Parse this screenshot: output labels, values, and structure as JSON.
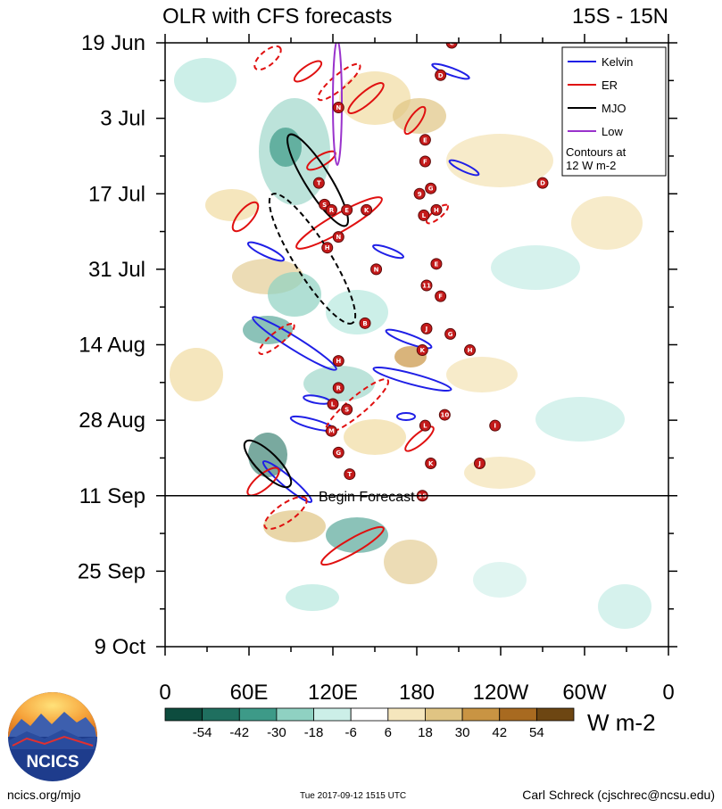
{
  "chart_data": {
    "type": "heatmap",
    "title": "OLR with CFS forecasts",
    "region_label": "15S - 15N",
    "y_ticks": [
      "19 Jun",
      "3 Jul",
      "17 Jul",
      "31 Jul",
      "14 Aug",
      "28 Aug",
      "11 Sep",
      "25 Sep",
      "9 Oct"
    ],
    "x_ticks": [
      "0",
      "60E",
      "120E",
      "180",
      "120W",
      "60W",
      "0"
    ],
    "x_range_deg": [
      0,
      360
    ],
    "y_range_days": [
      0,
      112
    ],
    "forecast_start_day": 84,
    "forecast_label": "Begin Forecast",
    "colorbar": {
      "labels": [
        "-54",
        "-42",
        "-30",
        "-18",
        "-6",
        "6",
        "18",
        "30",
        "42",
        "54"
      ],
      "colors": [
        "#0d4c3e",
        "#1f6f5f",
        "#3d9a88",
        "#8fd1c2",
        "#ccefe8",
        "#ffffff",
        "#f5e6bd",
        "#e0c483",
        "#c99443",
        "#a86a20",
        "#6d4612"
      ],
      "units": "W m-2"
    },
    "legend": {
      "entries": [
        {
          "name": "Kelvin",
          "color": "#1f1fe6"
        },
        {
          "name": "ER",
          "color": "#e01010"
        },
        {
          "name": "MJO",
          "color": "#000000"
        },
        {
          "name": "Low",
          "color": "#9932cc"
        }
      ],
      "note_lines": [
        "Contours at",
        "12 W m-2"
      ],
      "placement": "top-right"
    },
    "storms": [
      {
        "lon": 205,
        "day": 0,
        "label": "C"
      },
      {
        "lon": 197,
        "day": 6,
        "label": "D"
      },
      {
        "lon": 124,
        "day": 12,
        "label": "N"
      },
      {
        "lon": 186,
        "day": 18,
        "label": "E"
      },
      {
        "lon": 186,
        "day": 22,
        "label": "F"
      },
      {
        "lon": 270,
        "day": 26,
        "label": "D"
      },
      {
        "lon": 110,
        "day": 26,
        "label": "T"
      },
      {
        "lon": 190,
        "day": 27,
        "label": "G"
      },
      {
        "lon": 182,
        "day": 28,
        "label": "9"
      },
      {
        "lon": 114,
        "day": 30,
        "label": "S"
      },
      {
        "lon": 119,
        "day": 31,
        "label": "R"
      },
      {
        "lon": 130,
        "day": 31,
        "label": "E"
      },
      {
        "lon": 144,
        "day": 31,
        "label": "K"
      },
      {
        "lon": 194,
        "day": 31,
        "label": "H"
      },
      {
        "lon": 185,
        "day": 32,
        "label": "L"
      },
      {
        "lon": 124,
        "day": 36,
        "label": "N"
      },
      {
        "lon": 116,
        "day": 38,
        "label": "H"
      },
      {
        "lon": 194,
        "day": 41,
        "label": "E"
      },
      {
        "lon": 151,
        "day": 42,
        "label": "N"
      },
      {
        "lon": 187,
        "day": 45,
        "label": "11"
      },
      {
        "lon": 197,
        "day": 47,
        "label": "F"
      },
      {
        "lon": 143,
        "day": 52,
        "label": "B"
      },
      {
        "lon": 187,
        "day": 53,
        "label": "J"
      },
      {
        "lon": 204,
        "day": 54,
        "label": "G"
      },
      {
        "lon": 184,
        "day": 57,
        "label": "K"
      },
      {
        "lon": 218,
        "day": 57,
        "label": "H"
      },
      {
        "lon": 124,
        "day": 59,
        "label": "H"
      },
      {
        "lon": 124,
        "day": 64,
        "label": "R"
      },
      {
        "lon": 120,
        "day": 67,
        "label": "L"
      },
      {
        "lon": 130,
        "day": 68,
        "label": "S"
      },
      {
        "lon": 200,
        "day": 69,
        "label": "10"
      },
      {
        "lon": 186,
        "day": 71,
        "label": "L"
      },
      {
        "lon": 236,
        "day": 71,
        "label": "I"
      },
      {
        "lon": 119,
        "day": 72,
        "label": "M"
      },
      {
        "lon": 124,
        "day": 76,
        "label": "G"
      },
      {
        "lon": 190,
        "day": 78,
        "label": "K"
      },
      {
        "lon": 225,
        "day": 78,
        "label": "J"
      },
      {
        "lon": 132,
        "day": 80,
        "label": "T"
      },
      {
        "lon": 184,
        "day": 84,
        "label": "15"
      }
    ]
  },
  "footer": {
    "left": "ncics.org/mjo",
    "middle": "Tue 2017-09-12 1515 UTC",
    "right": "Carl Schreck (cjschrec@ncsu.edu)"
  },
  "logo": {
    "text": "NCICS"
  }
}
